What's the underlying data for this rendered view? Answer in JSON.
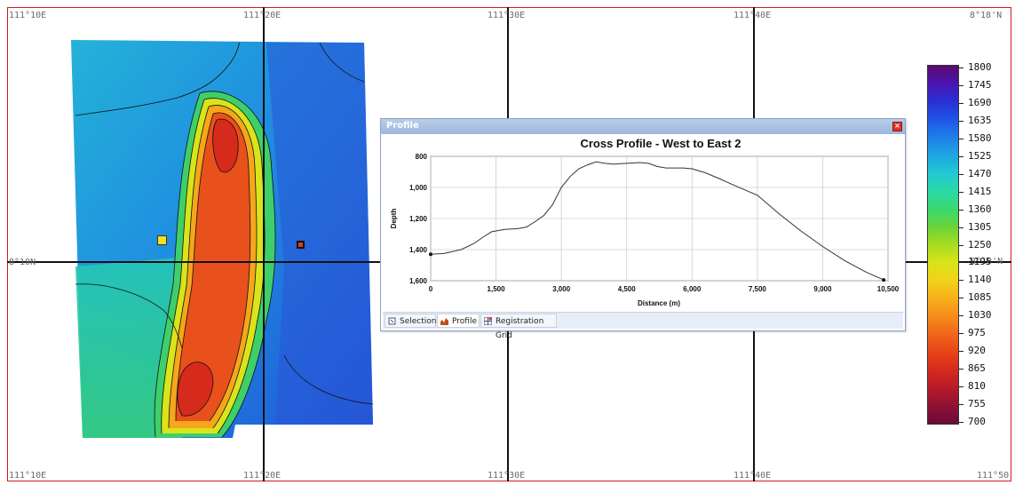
{
  "map": {
    "coord_labels": {
      "top_left": "111°10E",
      "top_col2": "111°20E",
      "top_col3": "111°30E",
      "top_col4": "111°40E",
      "top_right": "8°18'N",
      "mid_left": "8°10N",
      "mid_right": "8°10'N",
      "bottom_left": "111°10E",
      "bottom_col2": "111°20E",
      "bottom_col3": "111°30E",
      "bottom_col4": "111°40E",
      "bottom_right": "111°50"
    }
  },
  "colorbar": {
    "labels": [
      "1800",
      "1745",
      "1690",
      "1635",
      "1580",
      "1525",
      "1470",
      "1415",
      "1360",
      "1305",
      "1250",
      "1195",
      "1140",
      "1085",
      "1030",
      "975",
      "920",
      "865",
      "810",
      "755",
      "700"
    ],
    "colors": [
      "#5a0a6e",
      "#4b14b0",
      "#2a2fd6",
      "#1f55e6",
      "#1f7fe8",
      "#1fa6e2",
      "#22c8d4",
      "#2ad9a8",
      "#3ad96e",
      "#6ad33a",
      "#a8dc22",
      "#d9e41a",
      "#f0d21a",
      "#f7b01a",
      "#f58c1a",
      "#f0661a",
      "#e8441a",
      "#d62a1c",
      "#b81a28",
      "#8e1234",
      "#6a0a3a"
    ]
  },
  "markers": {
    "start_color": "#f2e21a",
    "end_color": "#e23a1a"
  },
  "profile": {
    "window_title": "Profile",
    "close_icon": "close-icon",
    "tabs": [
      {
        "label": "Selection",
        "icon": "selection-icon"
      },
      {
        "label": "Profile",
        "icon": "profile-chart-icon"
      },
      {
        "label": "Registration Grid",
        "icon": "registration-grid-icon"
      }
    ]
  },
  "chart_data": {
    "type": "line",
    "title": "Cross Profile - West to East 2",
    "xlabel": "Distance (m)",
    "ylabel": "Depth",
    "xlim": [
      0,
      10500
    ],
    "ylim": [
      1600,
      800
    ],
    "xticks": [
      "0",
      "1,500",
      "3,000",
      "4,500",
      "6,000",
      "7,500",
      "9,000",
      "10,500"
    ],
    "yticks": [
      "800",
      "1,000",
      "1,200",
      "1,400",
      "1,600"
    ],
    "grid": true,
    "series": [
      {
        "x": [
          0,
          300,
          700,
          1000,
          1200,
          1400,
          1700,
          2000,
          2200,
          2400,
          2600,
          2800,
          3000,
          3200,
          3400,
          3600,
          3800,
          4000,
          4200,
          4500,
          4800,
          5000,
          5200,
          5400,
          5600,
          5800,
          6000,
          6300,
          6600,
          7000,
          7500,
          8000,
          8500,
          9000,
          9500,
          10000,
          10400
        ],
        "y": [
          1430,
          1425,
          1400,
          1360,
          1320,
          1285,
          1270,
          1265,
          1255,
          1220,
          1180,
          1110,
          1000,
          930,
          880,
          855,
          835,
          845,
          850,
          845,
          840,
          845,
          865,
          875,
          875,
          875,
          880,
          905,
          940,
          990,
          1050,
          1170,
          1280,
          1380,
          1470,
          1545,
          1595
        ]
      }
    ]
  }
}
